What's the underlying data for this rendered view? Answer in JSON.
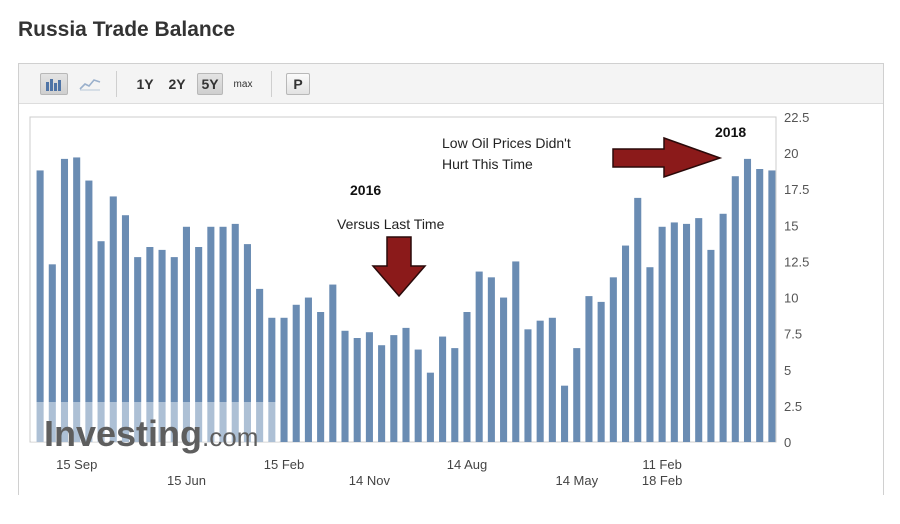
{
  "page": {
    "title": "Russia Trade Balance"
  },
  "toolbar": {
    "range_buttons": [
      "1Y",
      "2Y",
      "5Y",
      "max"
    ],
    "active_range": "5Y",
    "print_label": "P",
    "icons": [
      "bar-chart-icon",
      "line-chart-icon"
    ]
  },
  "watermark": {
    "brand": "Investing",
    "suffix": ".com"
  },
  "colors": {
    "bar": "#6a8cb3",
    "arrow": "#8b1a1a",
    "watermark": "#5e5e5e"
  },
  "chart_data": {
    "type": "bar",
    "title": "Russia Trade Balance",
    "xlabel": "",
    "ylabel": "",
    "ylim": [
      0,
      22.5
    ],
    "y_ticks": [
      "0",
      "2.5",
      "5",
      "7.5",
      "10",
      "12.5",
      "15",
      "17.5",
      "20",
      "22.5"
    ],
    "x_tick_labels": [
      {
        "label": "15 Sep",
        "row": 1,
        "bar_index": 3
      },
      {
        "label": "15 Jun",
        "row": 2,
        "bar_index": 12
      },
      {
        "label": "15 Feb",
        "row": 1,
        "bar_index": 20
      },
      {
        "label": "14 Nov",
        "row": 2,
        "bar_index": 27
      },
      {
        "label": "14 Aug",
        "row": 1,
        "bar_index": 35
      },
      {
        "label": "14 May",
        "row": 2,
        "bar_index": 44
      },
      {
        "label": "11 Feb",
        "row": 1,
        "bar_index": 51
      },
      {
        "label": "18 Feb",
        "row": 2,
        "bar_index": 51
      }
    ],
    "values": [
      18.8,
      12.3,
      19.6,
      19.7,
      18.1,
      13.9,
      17.0,
      15.7,
      12.8,
      13.5,
      13.3,
      12.8,
      14.9,
      13.5,
      14.9,
      14.9,
      15.1,
      13.7,
      10.6,
      8.6,
      8.6,
      9.5,
      10.0,
      9.0,
      10.9,
      7.7,
      7.2,
      7.6,
      6.7,
      7.4,
      7.9,
      6.4,
      4.8,
      7.3,
      6.5,
      9.0,
      11.8,
      11.4,
      10.0,
      12.5,
      7.8,
      8.4,
      8.6,
      3.9,
      6.5,
      10.1,
      9.7,
      11.4,
      13.6,
      16.9,
      12.1,
      14.9,
      15.2,
      15.1,
      15.5,
      13.3,
      15.8,
      18.4,
      19.6,
      18.9,
      18.8
    ],
    "annotations": [
      {
        "text": "2016",
        "bold": true
      },
      {
        "text": "Versus Last Time",
        "bold": false
      },
      {
        "text": "Low Oil Prices Didn't",
        "bold": false
      },
      {
        "text": "Hurt This Time",
        "bold": false
      },
      {
        "text": "2018",
        "bold": true
      }
    ],
    "arrows": [
      "down",
      "right"
    ],
    "grid": false,
    "legend": "none"
  }
}
